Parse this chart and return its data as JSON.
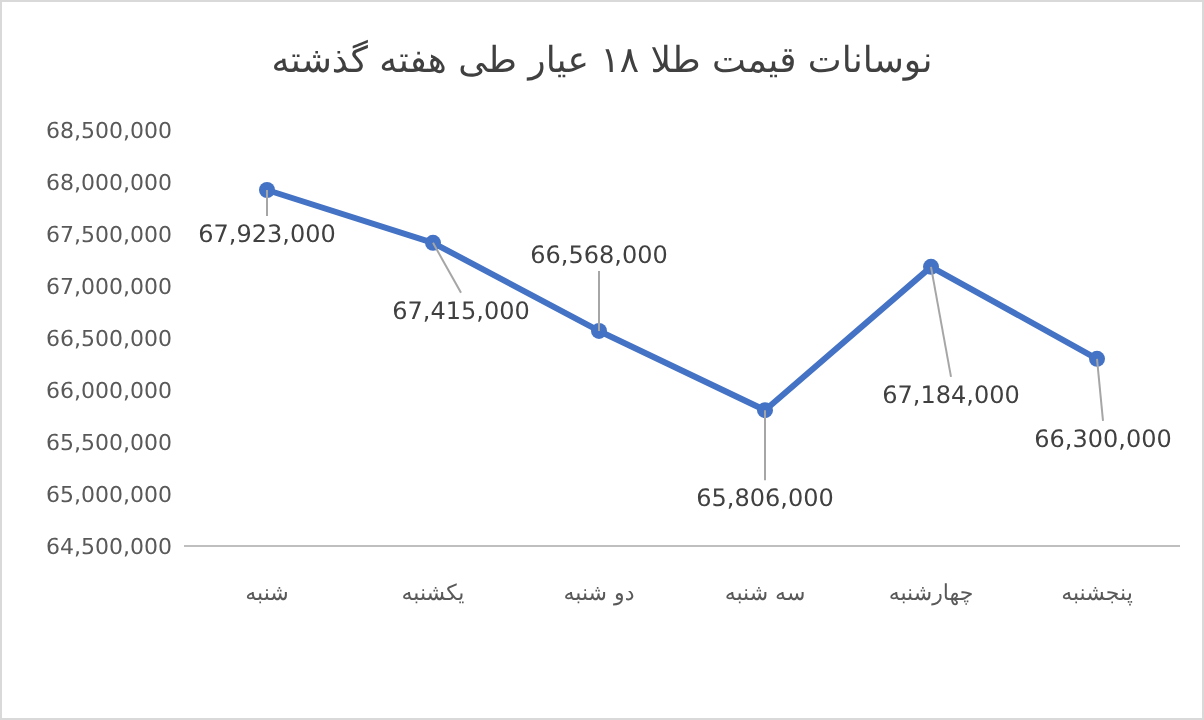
{
  "chart_data": {
    "type": "line",
    "title": "نوسانات قیمت طلا ۱۸ عیار طی هفته گذشته",
    "categories": [
      "شنبه",
      "یکشنبه",
      "دو شنبه",
      "سه شنبه",
      "چهارشنبه",
      "پنجشنبه"
    ],
    "series": [
      {
        "color": "#4472c4",
        "values": [
          67923000,
          67415000,
          66568000,
          65806000,
          67184000,
          66300000
        ],
        "value_labels": [
          "67,923,000",
          "67,415,000",
          "66,568,000",
          "65,806,000",
          "67,184,000",
          "66,300,000"
        ]
      }
    ],
    "ylim": [
      64500000,
      68500000
    ],
    "yticks": [
      {
        "value": 64500000,
        "label": "64,500,000"
      },
      {
        "value": 65000000,
        "label": "65,000,000"
      },
      {
        "value": 65500000,
        "label": "65,500,000"
      },
      {
        "value": 66000000,
        "label": "66,000,000"
      },
      {
        "value": 66500000,
        "label": "66,500,000"
      },
      {
        "value": 67000000,
        "label": "67,000,000"
      },
      {
        "value": 67500000,
        "label": "67,500,000"
      },
      {
        "value": 68000000,
        "label": "68,000,000"
      },
      {
        "value": 68500000,
        "label": "68,500,000"
      }
    ],
    "marker": "circle",
    "grid": false
  }
}
